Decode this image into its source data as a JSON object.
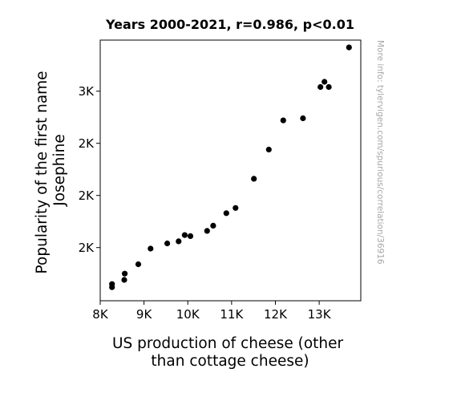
{
  "chart_data": {
    "type": "scatter",
    "title": "Years 2000-2021, r=0.986, p<0.01",
    "xlabel": [
      "US production of cheese (other",
      "than cottage cheese)"
    ],
    "ylabel": [
      "Popularity of the first name",
      "Josephine"
    ],
    "side_note": "More info: tylervigen.com/spurious/correlation/36916",
    "xlim": [
      8000,
      13950
    ],
    "ylim": [
      1495,
      2745
    ],
    "x_ticks": [
      {
        "value": 8000,
        "label": "8K"
      },
      {
        "value": 9000,
        "label": "9K"
      },
      {
        "value": 10000,
        "label": "10K"
      },
      {
        "value": 11000,
        "label": "11K"
      },
      {
        "value": 12000,
        "label": "12K"
      },
      {
        "value": 13000,
        "label": "13K"
      }
    ],
    "y_ticks": [
      {
        "value": 1750,
        "label": "2K"
      },
      {
        "value": 2000,
        "label": "2K"
      },
      {
        "value": 2250,
        "label": "2K"
      },
      {
        "value": 2500,
        "label": "3K"
      }
    ],
    "grid": false,
    "legend": "none",
    "marker_color": "#000000",
    "points": [
      {
        "x": 8270,
        "y": 1575
      },
      {
        "x": 8270,
        "y": 1560
      },
      {
        "x": 8550,
        "y": 1595
      },
      {
        "x": 8560,
        "y": 1625
      },
      {
        "x": 8870,
        "y": 1670
      },
      {
        "x": 9150,
        "y": 1745
      },
      {
        "x": 9530,
        "y": 1770
      },
      {
        "x": 9790,
        "y": 1780
      },
      {
        "x": 9930,
        "y": 1810
      },
      {
        "x": 10060,
        "y": 1805
      },
      {
        "x": 10440,
        "y": 1830
      },
      {
        "x": 10580,
        "y": 1855
      },
      {
        "x": 10880,
        "y": 1915
      },
      {
        "x": 11090,
        "y": 1940
      },
      {
        "x": 11510,
        "y": 2080
      },
      {
        "x": 11850,
        "y": 2220
      },
      {
        "x": 12180,
        "y": 2360
      },
      {
        "x": 12630,
        "y": 2370
      },
      {
        "x": 13030,
        "y": 2520
      },
      {
        "x": 13120,
        "y": 2545
      },
      {
        "x": 13220,
        "y": 2520
      },
      {
        "x": 13680,
        "y": 2710
      }
    ]
  }
}
